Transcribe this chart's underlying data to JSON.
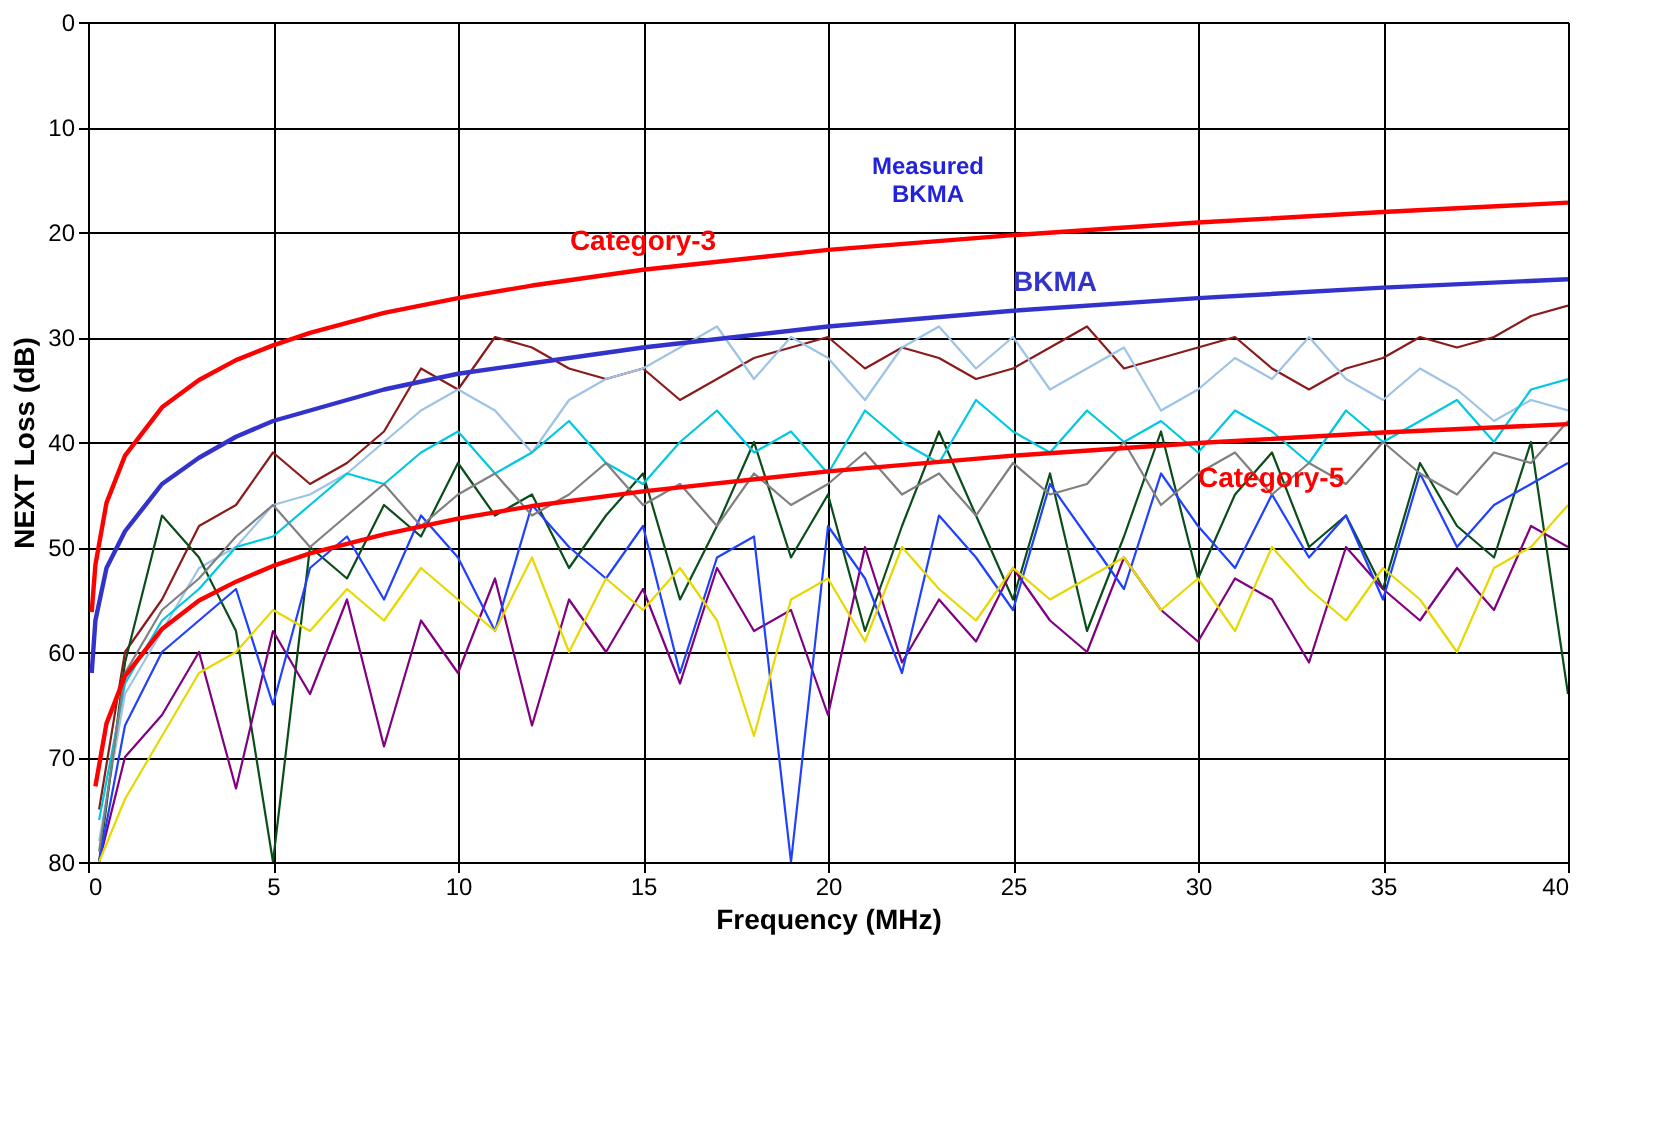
{
  "chart_data": {
    "type": "line",
    "xlabel": "Frequency (MHz)",
    "ylabel": "NEXT Loss (dB)",
    "xlim": [
      0,
      40
    ],
    "ylim": [
      80,
      0
    ],
    "xticks": [
      0,
      5,
      10,
      15,
      20,
      25,
      30,
      35,
      40
    ],
    "yticks": [
      0,
      10,
      20,
      30,
      40,
      50,
      60,
      70,
      80
    ],
    "grid": true,
    "marker": "none",
    "line_style": "solid",
    "annotations": [
      "Measured\nBKMA"
    ],
    "series": [
      {
        "name": null,
        "color": "#8b1a1a",
        "x": [
          0.3,
          1,
          2,
          3,
          4,
          5,
          6,
          7,
          8,
          9,
          10,
          11,
          12,
          13,
          14,
          15,
          16,
          17,
          18,
          19,
          20,
          21,
          22,
          23,
          24,
          25,
          26,
          27,
          28,
          29,
          30,
          31,
          32,
          33,
          34,
          35,
          36,
          37,
          38,
          39,
          40
        ],
        "values": [
          75,
          60,
          55,
          48,
          46,
          41,
          44,
          42,
          39,
          33,
          35,
          30,
          31,
          33,
          34,
          33,
          36,
          34,
          32,
          31,
          30,
          33,
          31,
          32,
          34,
          33,
          31,
          29,
          33,
          32,
          31,
          30,
          33,
          35,
          33,
          32,
          30,
          31,
          30,
          28,
          27
        ]
      },
      {
        "name": null,
        "color": "#9dc3e6",
        "x": [
          0.3,
          1,
          2,
          3,
          4,
          5,
          6,
          7,
          8,
          9,
          10,
          11,
          12,
          13,
          14,
          15,
          16,
          17,
          18,
          19,
          20,
          21,
          22,
          23,
          24,
          25,
          26,
          27,
          28,
          29,
          30,
          31,
          32,
          33,
          34,
          35,
          36,
          37,
          38,
          39,
          40
        ],
        "values": [
          78,
          64,
          58,
          52,
          50,
          46,
          45,
          43,
          40,
          37,
          35,
          37,
          41,
          36,
          34,
          33,
          31,
          29,
          34,
          30,
          32,
          36,
          31,
          29,
          33,
          30,
          35,
          33,
          31,
          37,
          35,
          32,
          34,
          30,
          34,
          36,
          33,
          35,
          38,
          36,
          37
        ]
      },
      {
        "name": null,
        "color": "#0b4d1a",
        "x": [
          0.3,
          1,
          2,
          3,
          4,
          5,
          6,
          7,
          8,
          9,
          10,
          11,
          12,
          13,
          14,
          15,
          16,
          17,
          18,
          19,
          20,
          21,
          22,
          23,
          24,
          25,
          26,
          27,
          28,
          29,
          30,
          31,
          32,
          33,
          34,
          35,
          36,
          37,
          38,
          39,
          40
        ],
        "values": [
          80,
          61,
          47,
          51,
          58,
          80,
          50,
          53,
          46,
          49,
          42,
          47,
          45,
          52,
          47,
          43,
          55,
          48,
          40,
          51,
          45,
          58,
          48,
          39,
          47,
          55,
          43,
          58,
          49,
          39,
          53,
          45,
          41,
          50,
          47,
          54,
          42,
          48,
          51,
          40,
          64
        ]
      },
      {
        "name": null,
        "color": "#00c8e0",
        "x": [
          0.3,
          1,
          2,
          3,
          4,
          5,
          6,
          7,
          8,
          9,
          10,
          11,
          12,
          13,
          14,
          15,
          16,
          17,
          18,
          19,
          20,
          21,
          22,
          23,
          24,
          25,
          26,
          27,
          28,
          29,
          30,
          31,
          32,
          33,
          34,
          35,
          36,
          37,
          38,
          39,
          40
        ],
        "values": [
          76,
          63,
          57,
          54,
          50,
          49,
          46,
          43,
          44,
          41,
          39,
          43,
          41,
          38,
          42,
          44,
          40,
          37,
          41,
          39,
          43,
          37,
          40,
          42,
          36,
          39,
          41,
          37,
          40,
          38,
          41,
          37,
          39,
          42,
          37,
          40,
          38,
          36,
          40,
          35,
          34
        ]
      },
      {
        "name": null,
        "color": "#800080",
        "x": [
          0.3,
          1,
          2,
          3,
          4,
          5,
          6,
          7,
          8,
          9,
          10,
          11,
          12,
          13,
          14,
          15,
          16,
          17,
          18,
          19,
          20,
          21,
          22,
          23,
          24,
          25,
          26,
          27,
          28,
          29,
          30,
          31,
          32,
          33,
          34,
          35,
          36,
          37,
          38,
          39,
          40
        ],
        "values": [
          80,
          70,
          66,
          60,
          73,
          58,
          64,
          55,
          69,
          57,
          62,
          53,
          67,
          55,
          60,
          54,
          63,
          52,
          58,
          56,
          66,
          50,
          61,
          55,
          59,
          52,
          57,
          60,
          51,
          56,
          59,
          53,
          55,
          61,
          50,
          54,
          57,
          52,
          56,
          48,
          50
        ]
      },
      {
        "name": null,
        "color": "#2040ff",
        "x": [
          0.3,
          1,
          2,
          3,
          4,
          5,
          6,
          7,
          8,
          9,
          10,
          11,
          12,
          13,
          14,
          15,
          16,
          17,
          18,
          19,
          20,
          21,
          22,
          23,
          24,
          25,
          26,
          27,
          28,
          29,
          30,
          31,
          32,
          33,
          34,
          35,
          36,
          37,
          38,
          39,
          40
        ],
        "values": [
          80,
          67,
          60,
          57,
          54,
          65,
          52,
          49,
          55,
          47,
          51,
          58,
          46,
          50,
          53,
          48,
          62,
          51,
          49,
          80,
          48,
          53,
          62,
          47,
          51,
          56,
          44,
          49,
          54,
          43,
          48,
          52,
          45,
          51,
          47,
          55,
          43,
          50,
          46,
          44,
          42
        ]
      },
      {
        "name": null,
        "color": "#e6d800",
        "x": [
          0.3,
          1,
          2,
          3,
          4,
          5,
          6,
          7,
          8,
          9,
          10,
          11,
          12,
          13,
          14,
          15,
          16,
          17,
          18,
          19,
          20,
          21,
          22,
          23,
          24,
          25,
          26,
          27,
          28,
          29,
          30,
          31,
          32,
          33,
          34,
          35,
          36,
          37,
          38,
          39,
          40
        ],
        "values": [
          80,
          74,
          68,
          62,
          60,
          56,
          58,
          54,
          57,
          52,
          55,
          58,
          51,
          60,
          53,
          56,
          52,
          57,
          68,
          55,
          53,
          59,
          50,
          54,
          57,
          52,
          55,
          53,
          51,
          56,
          53,
          58,
          50,
          54,
          57,
          52,
          55,
          60,
          52,
          50,
          46
        ]
      },
      {
        "name": null,
        "color": "#808080",
        "x": [
          0.3,
          1,
          2,
          3,
          4,
          5,
          6,
          7,
          8,
          9,
          10,
          11,
          12,
          13,
          14,
          15,
          16,
          17,
          18,
          19,
          20,
          21,
          22,
          23,
          24,
          25,
          26,
          27,
          28,
          29,
          30,
          31,
          32,
          33,
          34,
          35,
          36,
          37,
          38,
          39,
          40
        ],
        "values": [
          79,
          62,
          56,
          53,
          49,
          46,
          50,
          47,
          44,
          48,
          45,
          43,
          47,
          45,
          42,
          46,
          44,
          48,
          43,
          46,
          44,
          41,
          45,
          43,
          47,
          42,
          45,
          44,
          40,
          46,
          43,
          41,
          45,
          42,
          44,
          40,
          43,
          45,
          41,
          42,
          38
        ]
      },
      {
        "name": "Category-3",
        "color": "#ff0000",
        "x": [
          0.1,
          0.2,
          0.5,
          1,
          2,
          3,
          4,
          5,
          6,
          8,
          10,
          12,
          15,
          20,
          25,
          30,
          35,
          40
        ],
        "values": [
          56.2,
          51.7,
          45.8,
          41.3,
          36.7,
          34.1,
          32.2,
          30.8,
          29.6,
          27.7,
          26.3,
          25.1,
          23.6,
          21.7,
          20.3,
          19.1,
          18.1,
          17.2
        ]
      },
      {
        "name": "BKMA",
        "color": "#3333cc",
        "x": [
          0.1,
          0.2,
          0.5,
          1,
          2,
          3,
          4,
          5,
          6,
          8,
          10,
          12,
          15,
          20,
          25,
          30,
          35,
          40
        ],
        "values": [
          62,
          57,
          52,
          48.5,
          44,
          41.5,
          39.5,
          38,
          37,
          35,
          33.5,
          32.5,
          31,
          29,
          27.5,
          26.3,
          25.3,
          24.5
        ]
      },
      {
        "name": "Category-5",
        "color": "#ff0000",
        "x": [
          0.2,
          0.5,
          1,
          2,
          3,
          4,
          5,
          6,
          8,
          10,
          12,
          15,
          20,
          25,
          30,
          35,
          40
        ],
        "values": [
          72.8,
          66.8,
          62.3,
          57.8,
          55.1,
          53.3,
          51.8,
          50.6,
          48.8,
          47.3,
          46.1,
          44.7,
          42.8,
          41.3,
          40.1,
          39.1,
          38.3
        ]
      }
    ]
  }
}
